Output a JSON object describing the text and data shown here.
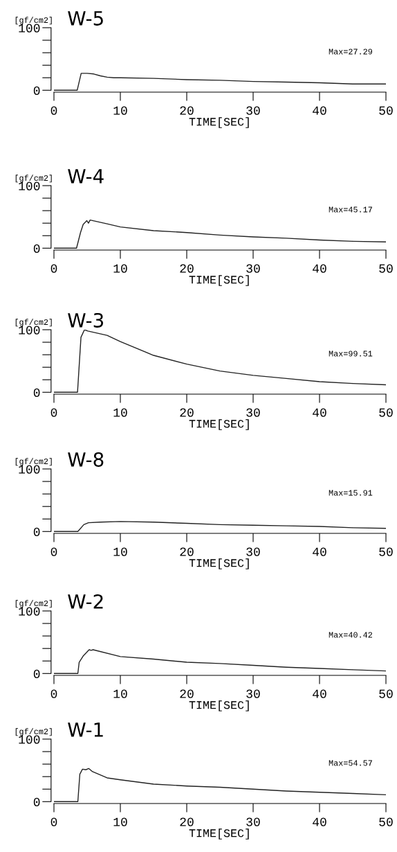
{
  "chart_data": [
    {
      "type": "line",
      "title": "W-5",
      "ylabel": "[gf/cm2]",
      "xlabel": "TIME[SEC]",
      "annotations": [
        "Max=27.29"
      ],
      "xlim": [
        0,
        50
      ],
      "xticks": [
        0,
        10,
        20,
        30,
        40,
        50
      ],
      "ylim": [
        -3,
        100
      ],
      "yticks": [
        0,
        {
          "value": 20,
          "label": null
        },
        {
          "value": 40,
          "label": null
        },
        {
          "value": 60,
          "label": null
        },
        {
          "value": 80,
          "label": null
        },
        100
      ],
      "grid": false,
      "legend": false,
      "series": [
        {
          "color": "#222222",
          "x": [
            0,
            3.5,
            4.1,
            5,
            6,
            7,
            8,
            9,
            10,
            15,
            20,
            25,
            30,
            35,
            40,
            45,
            50
          ],
          "values": [
            0,
            0,
            27,
            27,
            26,
            23,
            21,
            20,
            20,
            19,
            17,
            16,
            14,
            13,
            12,
            10,
            10
          ]
        }
      ]
    },
    {
      "type": "line",
      "title": "W-4",
      "ylabel": "[gf/cm2]",
      "xlabel": "TIME[SEC]",
      "annotations": [
        "Max=45.17"
      ],
      "xlim": [
        0,
        50
      ],
      "xticks": [
        0,
        10,
        20,
        30,
        40,
        50
      ],
      "ylim": [
        -3,
        100
      ],
      "yticks": [
        0,
        {
          "value": 20,
          "label": null
        },
        {
          "value": 40,
          "label": null
        },
        {
          "value": 60,
          "label": null
        },
        {
          "value": 80,
          "label": null
        },
        100
      ],
      "grid": false,
      "legend": false,
      "series": [
        {
          "color": "#222222",
          "x": [
            0,
            3.4,
            4.0,
            4.4,
            4.95,
            5.2,
            5.45,
            5.9,
            8,
            10,
            15,
            20,
            25,
            30,
            35,
            40,
            45,
            50
          ],
          "values": [
            0,
            0,
            25,
            38,
            44,
            40,
            45,
            44,
            39,
            34,
            28,
            25,
            21,
            18,
            16,
            13,
            11,
            10
          ]
        }
      ]
    },
    {
      "type": "line",
      "title": "W-3",
      "ylabel": "[gf/cm2]",
      "xlabel": "TIME[SEC]",
      "annotations": [
        "Max=99.51"
      ],
      "xlim": [
        0,
        50
      ],
      "xticks": [
        0,
        10,
        20,
        30,
        40,
        50
      ],
      "ylim": [
        -3,
        100
      ],
      "yticks": [
        0,
        {
          "value": 20,
          "label": null
        },
        {
          "value": 40,
          "label": null
        },
        {
          "value": 60,
          "label": null
        },
        {
          "value": 80,
          "label": null
        },
        100
      ],
      "grid": false,
      "legend": false,
      "series": [
        {
          "color": "#222222",
          "x": [
            0,
            3.55,
            4.07,
            4.6,
            5.1,
            8,
            10,
            15,
            20,
            25,
            30,
            35,
            40,
            45,
            50
          ],
          "values": [
            0,
            0,
            88,
            100,
            98,
            91,
            81,
            59,
            45,
            34,
            27,
            22,
            17,
            14,
            12
          ]
        }
      ]
    },
    {
      "type": "line",
      "title": "W-8",
      "ylabel": "[gf/cm2]",
      "xlabel": "TIME[SEC]",
      "annotations": [
        "Max=15.91"
      ],
      "xlim": [
        0,
        50
      ],
      "xticks": [
        0,
        10,
        20,
        30,
        40,
        50
      ],
      "ylim": [
        -3,
        100
      ],
      "yticks": [
        0,
        {
          "value": 20,
          "label": null
        },
        {
          "value": 40,
          "label": null
        },
        {
          "value": 60,
          "label": null
        },
        {
          "value": 80,
          "label": null
        },
        100
      ],
      "grid": false,
      "legend": false,
      "series": [
        {
          "color": "#222222",
          "x": [
            0,
            3.6,
            4.5,
            5.2,
            7,
            10,
            15,
            20,
            25,
            30,
            35,
            40,
            45,
            50
          ],
          "values": [
            0,
            0,
            11,
            14,
            15,
            16,
            15,
            13,
            11,
            10,
            9,
            8,
            6,
            5
          ]
        }
      ]
    },
    {
      "type": "line",
      "title": "W-2",
      "ylabel": "[gf/cm2]",
      "xlabel": "TIME[SEC]",
      "annotations": [
        "Max=40.42"
      ],
      "xlim": [
        0,
        50
      ],
      "xticks": [
        0,
        10,
        20,
        30,
        40,
        50
      ],
      "ylim": [
        -3,
        100
      ],
      "yticks": [
        0,
        {
          "value": 20,
          "label": null
        },
        {
          "value": 40,
          "label": null
        },
        {
          "value": 60,
          "label": null
        },
        {
          "value": 80,
          "label": null
        },
        100
      ],
      "grid": false,
      "legend": false,
      "series": [
        {
          "color": "#222222",
          "x": [
            0,
            3.6,
            3.8,
            4.4,
            4.95,
            5.3,
            5.6,
            5.9,
            10,
            15,
            20,
            25,
            30,
            35,
            40,
            45,
            50
          ],
          "values": [
            0,
            0,
            18,
            28,
            34,
            38,
            37,
            38,
            27,
            23,
            18,
            16,
            13,
            10,
            8,
            6,
            4
          ]
        }
      ]
    },
    {
      "type": "line",
      "title": "W-1",
      "ylabel": "[gf/cm2]",
      "xlabel": "TIME[SEC]",
      "annotations": [
        "Max=54.57"
      ],
      "xlim": [
        0,
        50
      ],
      "xticks": [
        0,
        10,
        20,
        30,
        40,
        50
      ],
      "ylim": [
        -3,
        100
      ],
      "yticks": [
        0,
        {
          "value": 20,
          "label": null
        },
        {
          "value": 40,
          "label": null
        },
        {
          "value": 60,
          "label": null
        },
        {
          "value": 80,
          "label": null
        },
        100
      ],
      "grid": false,
      "legend": false,
      "series": [
        {
          "color": "#222222",
          "x": [
            0,
            3.6,
            3.9,
            4.3,
            4.8,
            5.25,
            5.8,
            8,
            10,
            15,
            20,
            25,
            30,
            35,
            40,
            45,
            50
          ],
          "values": [
            0,
            0,
            44,
            52,
            51,
            53,
            48,
            38,
            35,
            28,
            25,
            23,
            20,
            17,
            15,
            13,
            11
          ]
        }
      ]
    }
  ]
}
